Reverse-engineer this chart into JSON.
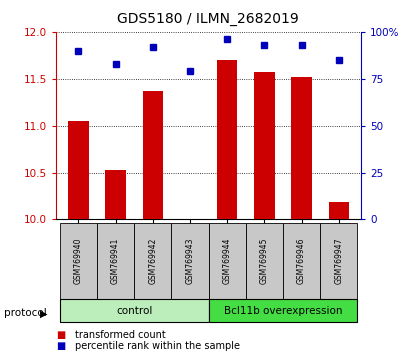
{
  "title": "GDS5180 / ILMN_2682019",
  "samples": [
    "GSM769940",
    "GSM769941",
    "GSM769942",
    "GSM769943",
    "GSM769944",
    "GSM769945",
    "GSM769946",
    "GSM769947"
  ],
  "transformed_counts": [
    11.05,
    10.53,
    11.37,
    10.01,
    11.7,
    11.57,
    11.52,
    10.19
  ],
  "percentile_ranks": [
    90,
    83,
    92,
    79,
    96,
    93,
    93,
    85
  ],
  "ylim_left": [
    10,
    12
  ],
  "ylim_right": [
    0,
    100
  ],
  "yticks_left": [
    10,
    10.5,
    11,
    11.5,
    12
  ],
  "yticks_right": [
    0,
    25,
    50,
    75,
    100
  ],
  "yticklabels_right": [
    "0",
    "25",
    "50",
    "75",
    "100%"
  ],
  "groups": [
    {
      "label": "control",
      "indices": [
        0,
        1,
        2,
        3
      ],
      "color": "#bbeebb"
    },
    {
      "label": "Bcl11b overexpression",
      "indices": [
        4,
        5,
        6,
        7
      ],
      "color": "#44dd44"
    }
  ],
  "bar_color": "#cc0000",
  "dot_color": "#0000bb",
  "bar_width": 0.55,
  "legend_red_label": "transformed count",
  "legend_blue_label": "percentile rank within the sample",
  "protocol_label": "protocol",
  "left_axis_color": "#cc0000",
  "right_axis_color": "#0000bb",
  "sample_box_color": "#c8c8c8",
  "title_fontsize": 10,
  "tick_fontsize": 7.5,
  "sample_label_fontsize": 5.5,
  "group_label_fontsize": 7.5,
  "legend_fontsize": 7
}
